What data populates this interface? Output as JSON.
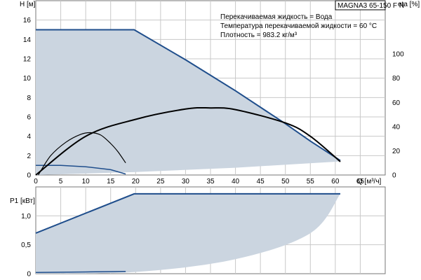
{
  "chart_data": [
    {
      "type": "line",
      "title": "MAGNA3 65-150 F N",
      "annotations": [
        "Перекачиваемая жидкость = Вода",
        "Температура перекачиваемой жидкости = 60 °C",
        "Плотность = 983.2 кг/м³"
      ],
      "xlabel": "Q [м³/ч]",
      "ylabel": "H [м]",
      "y2label": "eta [%]",
      "xlim": [
        0,
        70
      ],
      "ylim": [
        0,
        18
      ],
      "y2lim": [
        0,
        144
      ],
      "xticks": [
        "0",
        "5",
        "10",
        "15",
        "20",
        "25",
        "30",
        "35",
        "40",
        "45",
        "50",
        "55",
        "60",
        "65"
      ],
      "yticks": [
        "0",
        "2",
        "4",
        "6",
        "8",
        "10",
        "12",
        "14",
        "16"
      ],
      "y2ticks": [
        "0",
        "20",
        "40",
        "60",
        "80",
        "100"
      ],
      "grid": true,
      "colors": {
        "curve": "#1f4e8c",
        "fill": "#cbd5e0",
        "eta": "#000000",
        "grid": "#c8c8c8"
      },
      "series": [
        {
          "role": "max-speed-head",
          "x": [
            0,
            19.7,
            30,
            40,
            50,
            55,
            61
          ],
          "y": [
            15,
            15,
            11.9,
            8.7,
            5.3,
            3.5,
            1.5
          ]
        },
        {
          "role": "min-speed-head",
          "x": [
            0,
            5,
            10,
            15,
            18
          ],
          "y": [
            1.0,
            1.0,
            0.85,
            0.55,
            0.1
          ]
        },
        {
          "role": "min-operating-head",
          "x": [
            0,
            20,
            40,
            61
          ],
          "y": [
            0,
            0.3,
            0.75,
            1.4
          ]
        },
        {
          "role": "efficiency-max-speed",
          "axis": "y2",
          "x": [
            0,
            10,
            20,
            30,
            35,
            40,
            50,
            55,
            61
          ],
          "y": [
            0,
            32,
            46,
            54.5,
            55.4,
            54,
            43,
            32,
            11
          ]
        },
        {
          "role": "efficiency-min-speed",
          "axis": "y2",
          "x": [
            0.5,
            3,
            6,
            9,
            11,
            13,
            15,
            16.5,
            18
          ],
          "y": [
            0,
            16,
            27,
            33.6,
            35,
            33,
            26,
            19,
            10
          ]
        }
      ]
    },
    {
      "type": "line",
      "ylabel": "P1 [кВт]",
      "xlim": [
        0,
        70
      ],
      "ylim": [
        0,
        1.5
      ],
      "yticks": [
        "0",
        "0,5",
        "1,0"
      ],
      "grid": true,
      "series": [
        {
          "role": "max-speed-power",
          "x": [
            0,
            19.7,
            61
          ],
          "y": [
            0.7,
            1.38,
            1.38
          ]
        },
        {
          "role": "min-speed-power",
          "x": [
            0,
            10,
            18
          ],
          "y": [
            0.02,
            0.03,
            0.04
          ]
        },
        {
          "role": "min-operating-power",
          "x": [
            0,
            20,
            40,
            55,
            61
          ],
          "y": [
            0,
            0.03,
            0.25,
            0.7,
            1.38
          ]
        }
      ]
    }
  ]
}
